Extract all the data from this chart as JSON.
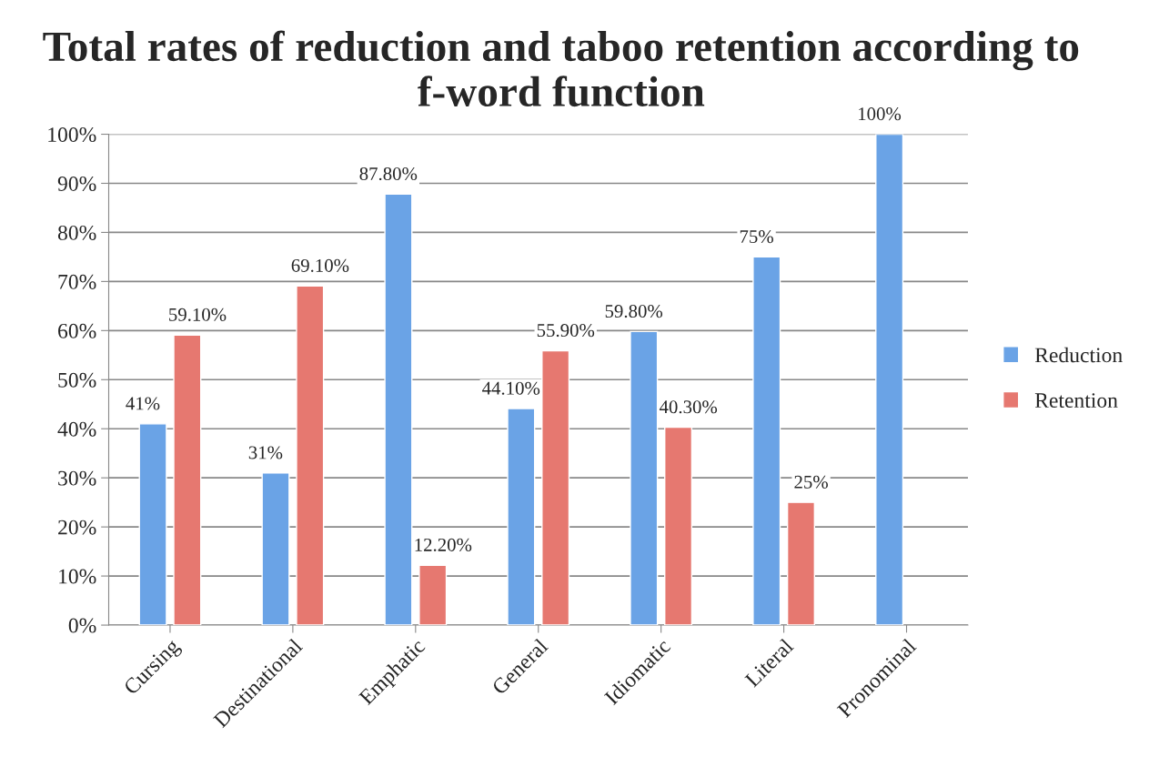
{
  "chart_data": {
    "type": "bar",
    "title": "Total rates of reduction and taboo retention according to f-word function",
    "categories": [
      "Cursing",
      "Destinational",
      "Emphatic",
      "General",
      "Idiomatic",
      "Literal",
      "Pronominal"
    ],
    "series": [
      {
        "name": "Reduction",
        "color": "#6aa3e6",
        "values": [
          41,
          31,
          87.8,
          44.1,
          59.8,
          75,
          100
        ],
        "value_labels": [
          "41%",
          "31%",
          "87.80%",
          "44.10%",
          "59.80%",
          "75%",
          "100%"
        ]
      },
      {
        "name": "Retention",
        "color": "#e67870",
        "values": [
          59.1,
          69.1,
          12.2,
          55.9,
          40.3,
          25,
          null
        ],
        "value_labels": [
          "59.10%",
          "69.10%",
          "12.20%",
          "55.90%",
          "40.30%",
          "25%",
          null
        ]
      }
    ],
    "ylim": [
      0,
      100
    ],
    "yticks": [
      {
        "value": 0,
        "label": "0%"
      },
      {
        "value": 10,
        "label": "10%"
      },
      {
        "value": 20,
        "label": "20%"
      },
      {
        "value": 30,
        "label": "30%"
      },
      {
        "value": 40,
        "label": "40%"
      },
      {
        "value": 50,
        "label": "50%"
      },
      {
        "value": 60,
        "label": "60%"
      },
      {
        "value": 70,
        "label": "70%"
      },
      {
        "value": 80,
        "label": "80%"
      },
      {
        "value": 90,
        "label": "90%"
      },
      {
        "value": 100,
        "label": "100%"
      }
    ],
    "grid": "y",
    "legend": "right"
  }
}
